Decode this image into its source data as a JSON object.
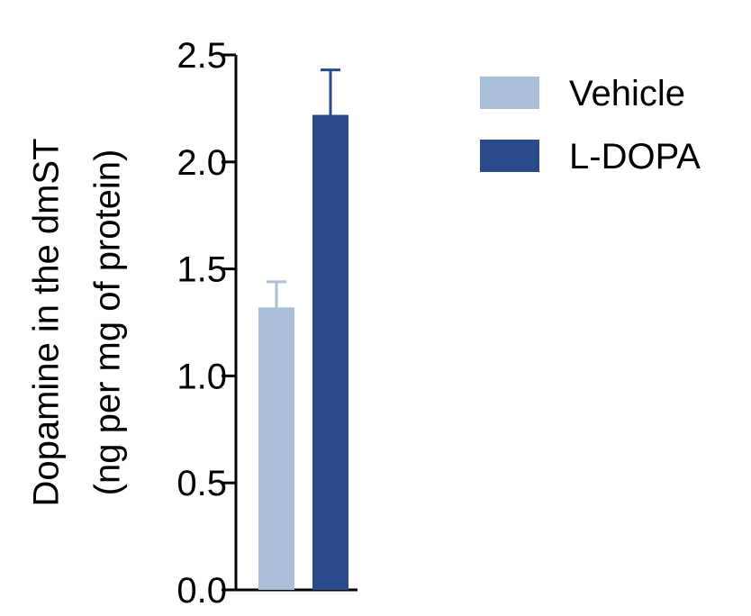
{
  "chart_data": {
    "type": "bar",
    "categories": [
      "Vehicle",
      "L-DOPA"
    ],
    "series": [
      {
        "name": "Vehicle",
        "value": 1.32,
        "error": 0.12,
        "color": "#a9bfd8"
      },
      {
        "name": "L-DOPA",
        "value": 2.22,
        "error": 0.21,
        "color": "#2b4a8a"
      }
    ],
    "ylabel_lines": [
      "Dopamine in the dmST",
      "(ng per mg of protein)"
    ],
    "ylim": [
      0,
      2.5
    ],
    "yticks": [
      "0.0",
      "0.5",
      "1.0",
      "1.5",
      "2.0",
      "2.5"
    ],
    "legend_position": "top-right",
    "grid": false
  }
}
